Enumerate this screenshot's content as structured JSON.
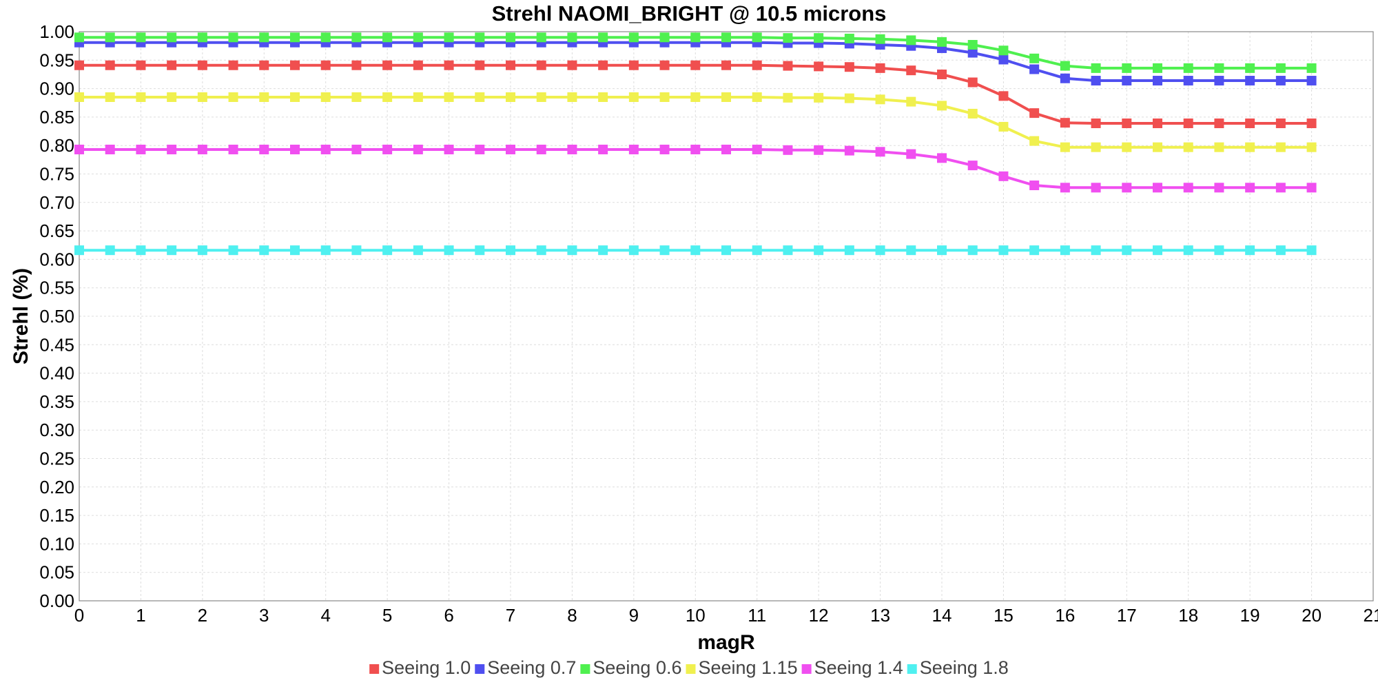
{
  "chart_data": {
    "type": "line",
    "title": "Strehl NAOMI_BRIGHT @ 10.5 microns",
    "xlabel": "magR",
    "ylabel": "Strehl (%)",
    "xlim": [
      0,
      21
    ],
    "ylim": [
      0,
      1
    ],
    "x_ticks": [
      0,
      1,
      2,
      3,
      4,
      5,
      6,
      7,
      8,
      9,
      10,
      11,
      12,
      13,
      14,
      15,
      16,
      17,
      18,
      19,
      20,
      21
    ],
    "y_ticks": [
      "0.00",
      "0.05",
      "0.10",
      "0.15",
      "0.20",
      "0.25",
      "0.30",
      "0.35",
      "0.40",
      "0.45",
      "0.50",
      "0.55",
      "0.60",
      "0.65",
      "0.70",
      "0.75",
      "0.80",
      "0.85",
      "0.90",
      "0.95",
      "1.00"
    ],
    "grid": true,
    "legend_position": "bottom",
    "x": [
      0,
      0.5,
      1,
      1.5,
      2,
      2.5,
      3,
      3.5,
      4,
      4.5,
      5,
      5.5,
      6,
      6.5,
      7,
      7.5,
      8,
      8.5,
      9,
      9.5,
      10,
      10.5,
      11,
      11.5,
      12,
      12.5,
      13,
      13.5,
      14,
      14.5,
      15,
      15.5,
      16,
      16.5,
      17,
      17.5,
      18,
      18.5,
      19,
      19.5,
      20
    ],
    "series": [
      {
        "name": "Seeing 1.0",
        "color": "#f04f4f",
        "values": [
          0.941,
          0.941,
          0.941,
          0.941,
          0.941,
          0.941,
          0.941,
          0.941,
          0.941,
          0.941,
          0.941,
          0.941,
          0.941,
          0.941,
          0.941,
          0.941,
          0.941,
          0.941,
          0.941,
          0.941,
          0.941,
          0.941,
          0.941,
          0.94,
          0.939,
          0.938,
          0.936,
          0.932,
          0.925,
          0.911,
          0.887,
          0.857,
          0.84,
          0.839,
          0.839,
          0.839,
          0.839,
          0.839,
          0.839,
          0.839,
          0.839
        ]
      },
      {
        "name": "Seeing 0.7",
        "color": "#4f4ff0",
        "values": [
          0.981,
          0.981,
          0.981,
          0.981,
          0.981,
          0.981,
          0.981,
          0.981,
          0.981,
          0.981,
          0.981,
          0.981,
          0.981,
          0.981,
          0.981,
          0.981,
          0.981,
          0.981,
          0.981,
          0.981,
          0.981,
          0.981,
          0.981,
          0.98,
          0.98,
          0.979,
          0.977,
          0.975,
          0.971,
          0.963,
          0.951,
          0.934,
          0.918,
          0.914,
          0.914,
          0.914,
          0.914,
          0.914,
          0.914,
          0.914,
          0.914
        ]
      },
      {
        "name": "Seeing 0.6",
        "color": "#4ff04f",
        "values": [
          0.99,
          0.99,
          0.99,
          0.99,
          0.99,
          0.99,
          0.99,
          0.99,
          0.99,
          0.99,
          0.99,
          0.99,
          0.99,
          0.99,
          0.99,
          0.99,
          0.99,
          0.99,
          0.99,
          0.99,
          0.99,
          0.99,
          0.99,
          0.989,
          0.989,
          0.988,
          0.987,
          0.985,
          0.982,
          0.977,
          0.967,
          0.953,
          0.94,
          0.936,
          0.936,
          0.936,
          0.936,
          0.936,
          0.936,
          0.936,
          0.936
        ]
      },
      {
        "name": "Seeing 1.15",
        "color": "#f0f04f",
        "values": [
          0.885,
          0.885,
          0.885,
          0.885,
          0.885,
          0.885,
          0.885,
          0.885,
          0.885,
          0.885,
          0.885,
          0.885,
          0.885,
          0.885,
          0.885,
          0.885,
          0.885,
          0.885,
          0.885,
          0.885,
          0.885,
          0.885,
          0.885,
          0.884,
          0.884,
          0.883,
          0.881,
          0.877,
          0.87,
          0.856,
          0.833,
          0.808,
          0.797,
          0.797,
          0.797,
          0.797,
          0.797,
          0.797,
          0.797,
          0.797,
          0.797
        ]
      },
      {
        "name": "Seeing 1.4",
        "color": "#f04ff0",
        "values": [
          0.793,
          0.793,
          0.793,
          0.793,
          0.793,
          0.793,
          0.793,
          0.793,
          0.793,
          0.793,
          0.793,
          0.793,
          0.793,
          0.793,
          0.793,
          0.793,
          0.793,
          0.793,
          0.793,
          0.793,
          0.793,
          0.793,
          0.793,
          0.792,
          0.792,
          0.791,
          0.789,
          0.785,
          0.778,
          0.765,
          0.746,
          0.73,
          0.726,
          0.726,
          0.726,
          0.726,
          0.726,
          0.726,
          0.726,
          0.726,
          0.726
        ]
      },
      {
        "name": "Seeing 1.8",
        "color": "#4ff0f0",
        "values": [
          0.616,
          0.616,
          0.616,
          0.616,
          0.616,
          0.616,
          0.616,
          0.616,
          0.616,
          0.616,
          0.616,
          0.616,
          0.616,
          0.616,
          0.616,
          0.616,
          0.616,
          0.616,
          0.616,
          0.616,
          0.616,
          0.616,
          0.616,
          0.616,
          0.616,
          0.616,
          0.616,
          0.616,
          0.616,
          0.616,
          0.616,
          0.616,
          0.616,
          0.616,
          0.616,
          0.616,
          0.616,
          0.616,
          0.616,
          0.616,
          0.616
        ]
      }
    ]
  }
}
